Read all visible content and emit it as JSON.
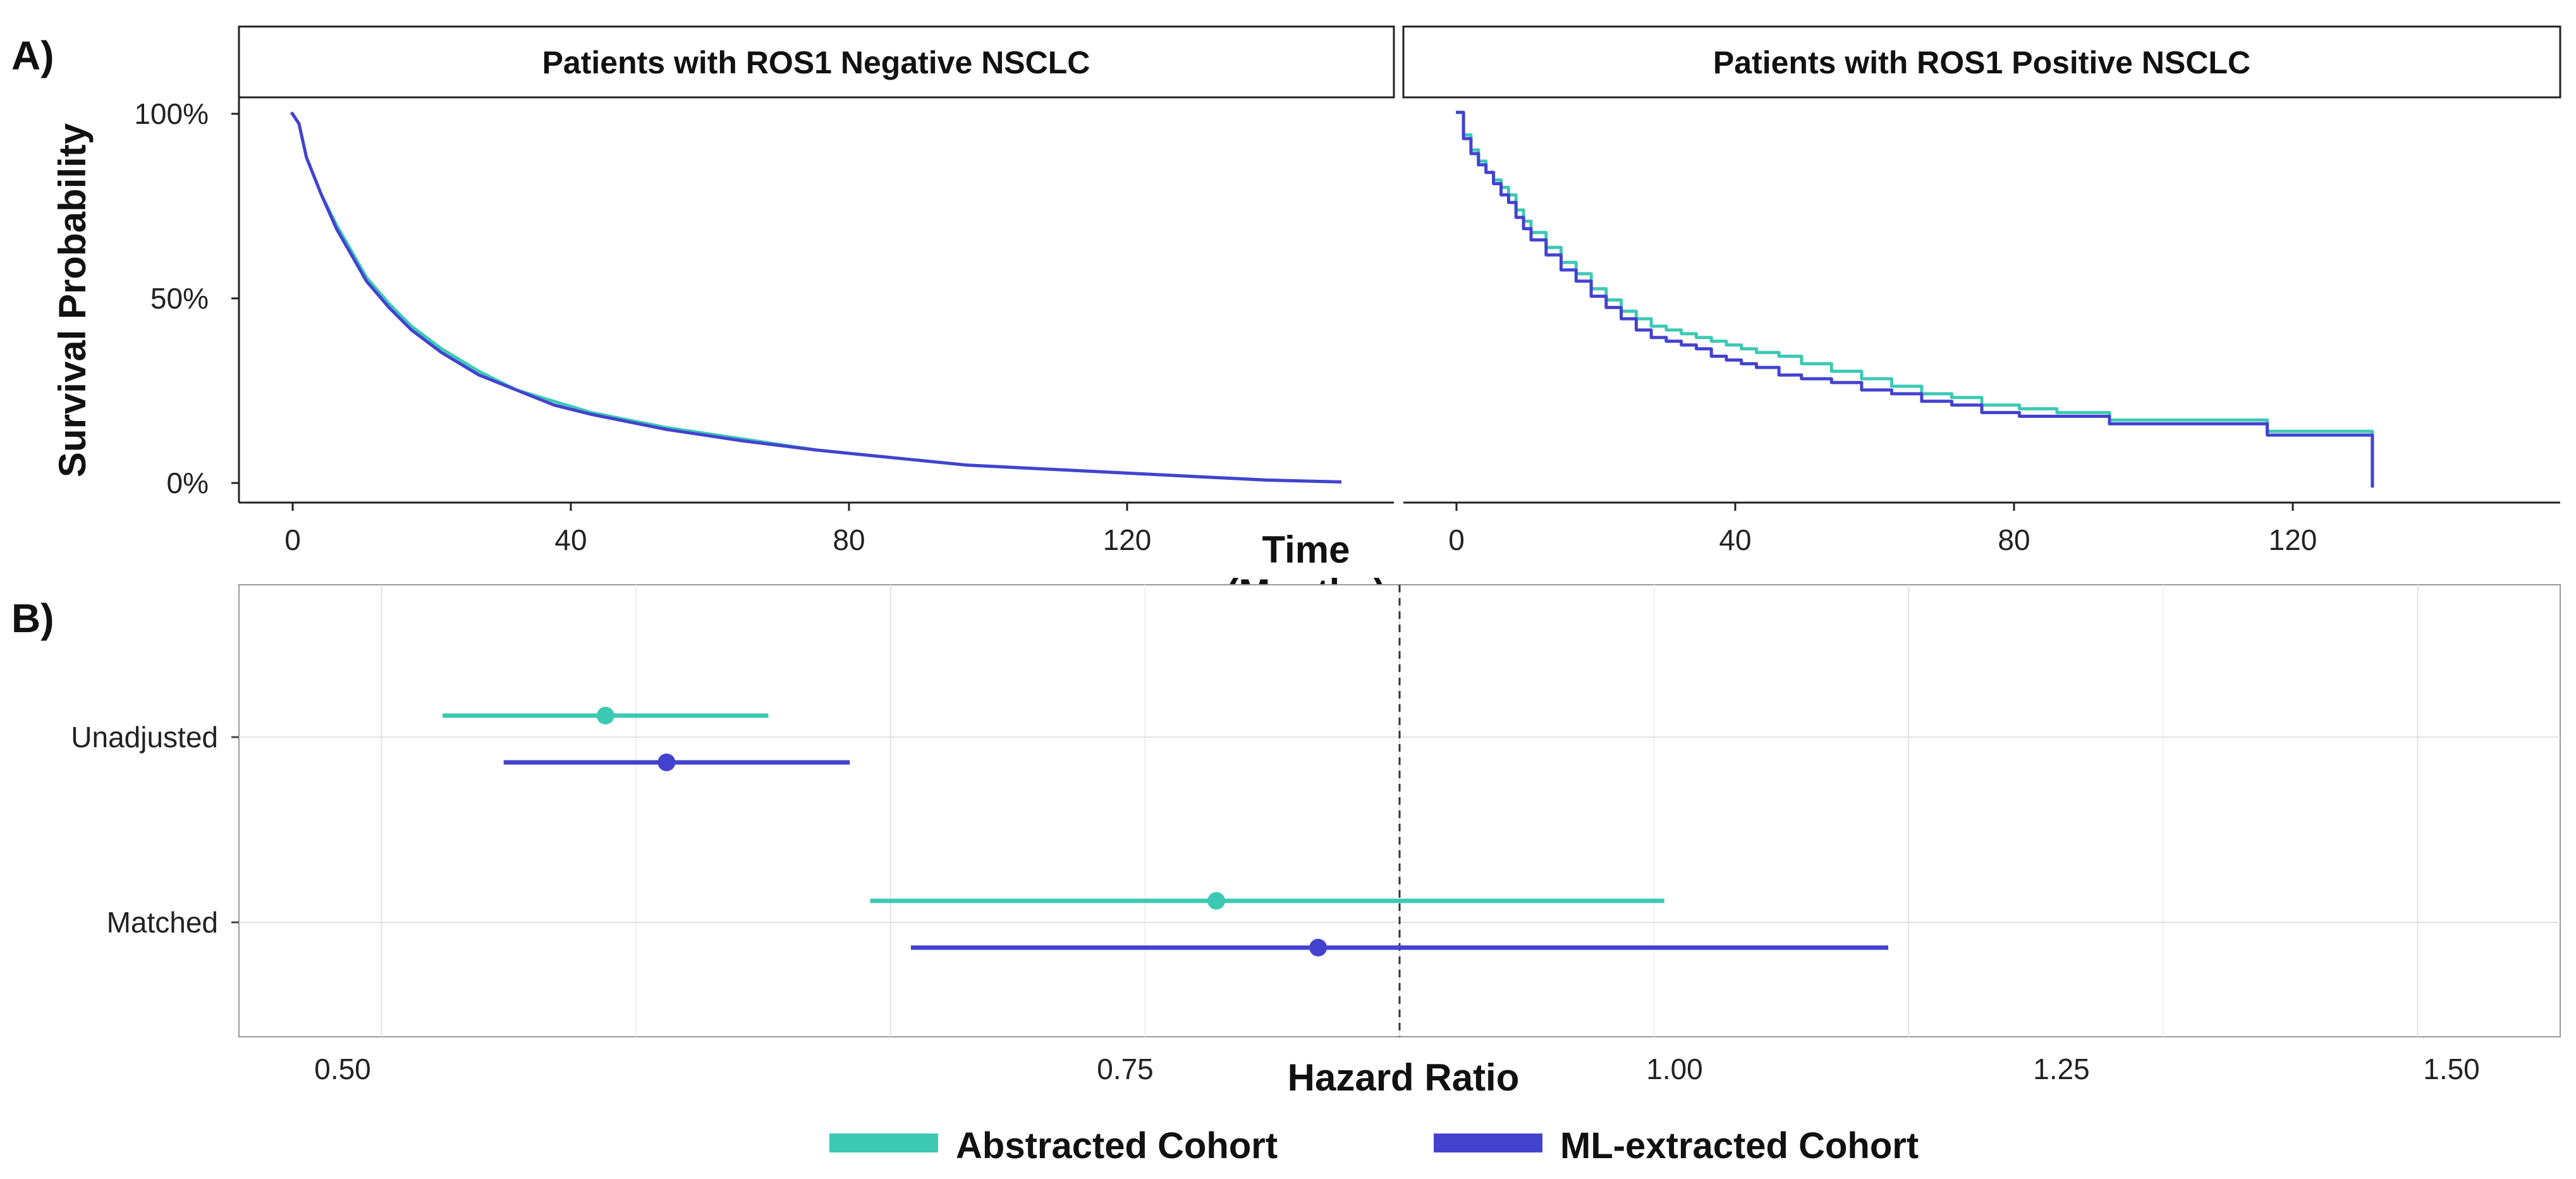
{
  "panels": {
    "a_label": "A)",
    "b_label": "B)"
  },
  "colors": {
    "abstracted": "#3cc9b4",
    "ml": "#4342cf"
  },
  "legend": {
    "abstracted": "Abstracted Cohort",
    "ml": "ML-extracted Cohort"
  },
  "chart_data": [
    {
      "type": "line",
      "title": "Patients with ROS1 Negative NSCLC",
      "xlabel_line1": "Time",
      "xlabel_line2": "(Months)",
      "ylabel": "Survival Probability",
      "xlim": [
        -7,
        147
      ],
      "ylim": [
        -0.04,
        1.04
      ],
      "xticks": [
        0,
        40,
        80,
        120
      ],
      "xtick_labels": [
        "0",
        "40",
        "80",
        "120"
      ],
      "yticks": [
        0,
        0.5,
        1
      ],
      "ytick_labels": [
        "0%",
        "50%",
        "100%"
      ],
      "series": [
        {
          "name": "Abstracted Cohort",
          "step": false,
          "x": [
            0,
            1,
            2,
            4,
            6,
            8,
            10,
            13,
            16,
            20,
            25,
            30,
            35,
            40,
            50,
            60,
            70,
            80,
            90,
            100,
            110,
            120,
            130,
            140
          ],
          "y": [
            1.0,
            0.97,
            0.88,
            0.78,
            0.7,
            0.63,
            0.56,
            0.49,
            0.43,
            0.37,
            0.31,
            0.26,
            0.23,
            0.2,
            0.16,
            0.13,
            0.1,
            0.08,
            0.06,
            0.05,
            0.04,
            0.03,
            0.02,
            0.015
          ]
        },
        {
          "name": "ML-extracted Cohort",
          "step": false,
          "x": [
            0,
            1,
            2,
            4,
            6,
            8,
            10,
            13,
            16,
            20,
            25,
            30,
            35,
            40,
            50,
            60,
            70,
            80,
            90,
            100,
            110,
            120,
            130,
            140
          ],
          "y": [
            1.0,
            0.97,
            0.88,
            0.78,
            0.69,
            0.62,
            0.55,
            0.48,
            0.42,
            0.36,
            0.3,
            0.26,
            0.22,
            0.195,
            0.155,
            0.125,
            0.1,
            0.08,
            0.06,
            0.05,
            0.04,
            0.03,
            0.02,
            0.015
          ]
        }
      ]
    },
    {
      "type": "line",
      "title": "Patients with ROS1 Positive NSCLC",
      "xlim": [
        -7,
        147
      ],
      "ylim": [
        -0.04,
        1.04
      ],
      "xticks": [
        0,
        40,
        80,
        120
      ],
      "xtick_labels": [
        "0",
        "40",
        "80",
        "120"
      ],
      "series": [
        {
          "name": "Abstracted Cohort",
          "step": true,
          "x": [
            0,
            1,
            2,
            3,
            4,
            5,
            6,
            7,
            8,
            9,
            10,
            12,
            14,
            16,
            18,
            20,
            22,
            24,
            26,
            28,
            30,
            32,
            34,
            36,
            38,
            40,
            43,
            46,
            50,
            54,
            58,
            62,
            66,
            70,
            75,
            80,
            87,
            95,
            108,
            115,
            122
          ],
          "y": [
            1.0,
            0.94,
            0.9,
            0.87,
            0.84,
            0.82,
            0.8,
            0.78,
            0.74,
            0.71,
            0.68,
            0.64,
            0.6,
            0.57,
            0.53,
            0.5,
            0.47,
            0.45,
            0.43,
            0.42,
            0.41,
            0.4,
            0.39,
            0.38,
            0.37,
            0.36,
            0.35,
            0.33,
            0.31,
            0.29,
            0.27,
            0.25,
            0.24,
            0.22,
            0.21,
            0.2,
            0.18,
            0.18,
            0.15,
            0.15,
            0.0
          ]
        },
        {
          "name": "ML-extracted Cohort",
          "step": true,
          "x": [
            0,
            1,
            2,
            3,
            4,
            5,
            6,
            7,
            8,
            9,
            10,
            12,
            14,
            16,
            18,
            20,
            22,
            24,
            26,
            28,
            30,
            32,
            34,
            36,
            38,
            40,
            43,
            46,
            50,
            54,
            58,
            62,
            66,
            70,
            75,
            80,
            87,
            95,
            108,
            115,
            122
          ],
          "y": [
            1.0,
            0.93,
            0.89,
            0.86,
            0.84,
            0.81,
            0.78,
            0.76,
            0.72,
            0.69,
            0.66,
            0.62,
            0.58,
            0.55,
            0.51,
            0.48,
            0.45,
            0.42,
            0.4,
            0.39,
            0.38,
            0.37,
            0.35,
            0.34,
            0.33,
            0.32,
            0.3,
            0.29,
            0.28,
            0.26,
            0.25,
            0.23,
            0.22,
            0.2,
            0.19,
            0.19,
            0.17,
            0.17,
            0.14,
            0.14,
            0.0
          ]
        }
      ]
    },
    {
      "type": "forest",
      "xlabel": "Hazard Ratio",
      "xlim": [
        0.43,
        1.57
      ],
      "xticks": [
        0.5,
        0.75,
        1.0,
        1.25,
        1.5
      ],
      "xtick_labels": [
        "0.50",
        "0.75",
        "1.00",
        "1.25",
        "1.50"
      ],
      "minor_xticks": [
        0.625,
        0.875,
        1.125,
        1.375
      ],
      "reference_line": 1.0,
      "categories": [
        "Unadjusted",
        "Matched"
      ],
      "series": [
        {
          "name": "Abstracted Cohort",
          "estimates": [
            0.61,
            0.91
          ],
          "lower": [
            0.53,
            0.74
          ],
          "upper": [
            0.69,
            1.13
          ]
        },
        {
          "name": "ML-extracted Cohort",
          "estimates": [
            0.64,
            0.96
          ],
          "lower": [
            0.56,
            0.76
          ],
          "upper": [
            0.73,
            1.24
          ]
        }
      ]
    }
  ]
}
